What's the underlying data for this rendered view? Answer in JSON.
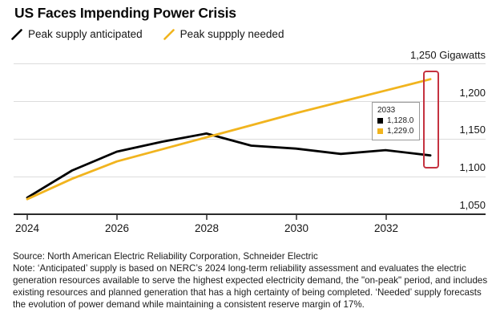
{
  "header": {
    "title": "US Faces Impending Power Crisis"
  },
  "legend": {
    "items": [
      {
        "label": "Peak supply anticipated",
        "color": "#000000"
      },
      {
        "label": "Peak suppply needed",
        "color": "#f1b41e"
      }
    ]
  },
  "chart_data": {
    "type": "line",
    "title": "US Faces Impending Power Crisis",
    "xlabel": "",
    "ylabel": "Gigawatts",
    "x": [
      2024,
      2025,
      2026,
      2027,
      2028,
      2029,
      2030,
      2031,
      2032,
      2033
    ],
    "series": [
      {
        "name": "Peak supply anticipated",
        "color": "#000000",
        "values": [
          1072,
          1108,
          1133,
          1146,
          1157,
          1141,
          1137,
          1130,
          1135,
          1128
        ]
      },
      {
        "name": "Peak suppply needed",
        "color": "#f1b41e",
        "values": [
          1070,
          1097,
          1120,
          1136,
          1152,
          1168,
          1184,
          1199,
          1214,
          1229
        ]
      }
    ],
    "ylim": [
      1050,
      1250
    ],
    "xlim": [
      2024,
      2034.2
    ],
    "yticks": [
      1050,
      1100,
      1150,
      1200,
      1250
    ],
    "yticklabels": [
      "1,050",
      "1,100",
      "1,150",
      "1,200",
      "1,250 Gigawatts"
    ],
    "xticklabels": [
      "2024",
      "2026",
      "2028",
      "2030",
      "2032"
    ],
    "grid": true,
    "legend_position": "top",
    "tooltip": {
      "year": "2033",
      "rows": [
        {
          "color": "#000000",
          "value": "1,128.0"
        },
        {
          "color": "#f1b41e",
          "value": "1,229.0"
        }
      ]
    },
    "annotation": "red highlight box around the 2033 endpoints"
  },
  "colors": {
    "accent_yellow": "#f1b41e",
    "highlight_red": "#c53240",
    "gridline": "#dcdcdc",
    "axis": "#2b2b2b"
  },
  "footer": {
    "source": "Source: North American Electric Reliability Corporation, Schneider Electric",
    "note": "Note: ‘Anticipated’ supply is based on NERC’s 2024 long-term reliability assessment and evaluates the electric generation resources available to serve the highest expected electricity demand, the \"on-peak\" period, and includes existing resources and planned generation that has a high certainty of being completed. ‘Needed’ supply forecasts the evolution of power demand while maintaining a consistent reserve margin of 17%."
  }
}
